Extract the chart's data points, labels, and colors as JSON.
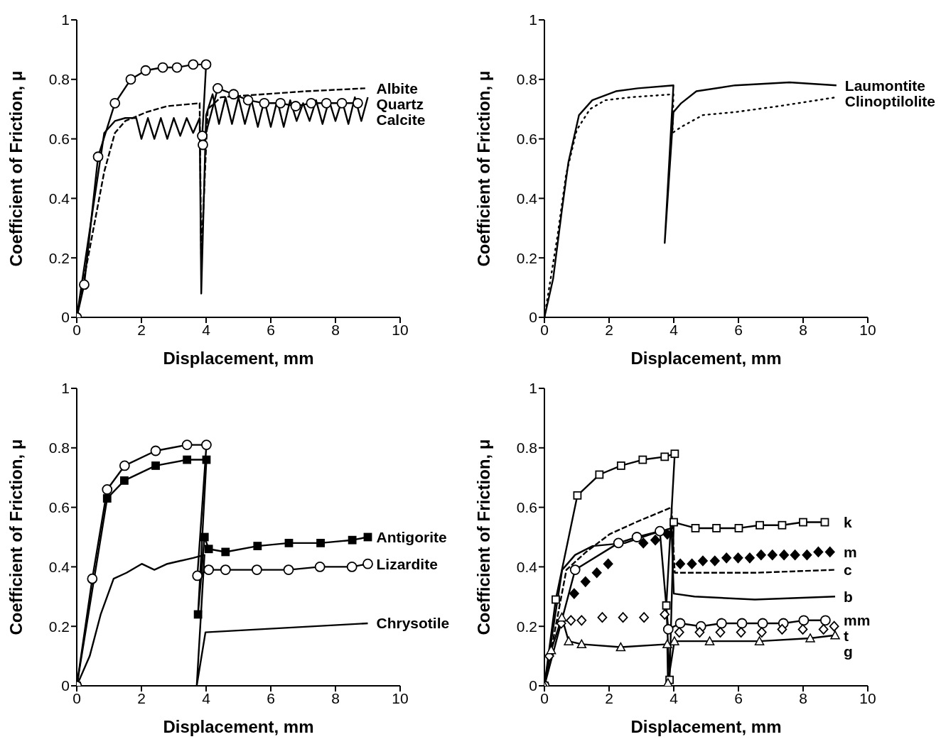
{
  "chart_data": [
    {
      "type": "line",
      "xlabel": "Displacement, mm",
      "ylabel": "Coefficient of Friction, μ",
      "xlim": [
        0,
        10
      ],
      "ylim": [
        0,
        1
      ],
      "xticks": [
        0,
        2,
        4,
        6,
        8,
        10
      ],
      "yticks": [
        0,
        0.2,
        0.4,
        0.6,
        0.8,
        1
      ],
      "series": [
        {
          "name": "Calcite",
          "color": "#000000",
          "marker": "circle",
          "line_style": "solid",
          "x": [
            0,
            0.23,
            0.66,
            1.18,
            1.67,
            2.13,
            2.66,
            3.1,
            3.6,
            4.0,
            3.88,
            3.9,
            4.36,
            4.85,
            5.3,
            5.8,
            6.3,
            6.77,
            7.25,
            7.72,
            8.2,
            8.69
          ],
          "values": [
            0,
            0.11,
            0.54,
            0.72,
            0.8,
            0.83,
            0.84,
            0.84,
            0.85,
            0.85,
            0.61,
            0.58,
            0.77,
            0.75,
            0.73,
            0.72,
            0.72,
            0.71,
            0.72,
            0.72,
            0.72,
            0.72
          ]
        },
        {
          "name": "Albite",
          "color": "#000000",
          "marker": "none",
          "line_style": "dashed",
          "x": [
            0,
            0.52,
            0.85,
            1.18,
            1.5,
            2.16,
            2.8,
            3.8,
            3.85,
            4.05,
            4.46,
            5.77,
            7.08,
            8.92
          ],
          "values": [
            0,
            0.3,
            0.49,
            0.62,
            0.66,
            0.69,
            0.71,
            0.72,
            0.2,
            0.7,
            0.74,
            0.75,
            0.76,
            0.77
          ]
        },
        {
          "name": "Quartz",
          "color": "#000000",
          "marker": "none",
          "line_style": "solid",
          "x": [
            0,
            0.85,
            1.18,
            1.5,
            1.84,
            2.0,
            2.2,
            2.4,
            2.6,
            2.8,
            3.0,
            3.2,
            3.4,
            3.6,
            3.8,
            3.85,
            4.0,
            4.2,
            4.4,
            4.6,
            4.8,
            5.0,
            5.2,
            5.4,
            5.6,
            5.8,
            6.0,
            6.2,
            6.4,
            6.6,
            6.8,
            7.0,
            7.2,
            7.4,
            7.6,
            7.8,
            8.0,
            8.2,
            8.4,
            8.6,
            8.8,
            9.0
          ],
          "values": [
            0,
            0.62,
            0.66,
            0.67,
            0.67,
            0.6,
            0.67,
            0.6,
            0.67,
            0.6,
            0.67,
            0.61,
            0.67,
            0.62,
            0.67,
            0.08,
            0.68,
            0.75,
            0.65,
            0.74,
            0.65,
            0.74,
            0.65,
            0.73,
            0.64,
            0.73,
            0.64,
            0.73,
            0.64,
            0.73,
            0.66,
            0.72,
            0.66,
            0.73,
            0.65,
            0.73,
            0.66,
            0.73,
            0.65,
            0.74,
            0.66,
            0.74
          ]
        }
      ]
    },
    {
      "type": "line",
      "xlabel": "Displacement, mm",
      "ylabel": "Coefficient of Friction, μ",
      "xlim": [
        0,
        10
      ],
      "ylim": [
        0,
        1
      ],
      "xticks": [
        0,
        2,
        4,
        6,
        8,
        10
      ],
      "yticks": [
        0,
        0.2,
        0.4,
        0.6,
        0.8,
        1
      ],
      "series": [
        {
          "name": "Laumontite",
          "color": "#000000",
          "marker": "none",
          "line_style": "solid",
          "x": [
            0,
            0.27,
            0.54,
            0.74,
            1.07,
            1.48,
            2.21,
            2.89,
            3.99,
            3.72,
            3.99,
            4.23,
            4.7,
            5.9,
            7.58,
            9.03
          ],
          "values": [
            0,
            0.13,
            0.36,
            0.52,
            0.68,
            0.73,
            0.76,
            0.77,
            0.78,
            0.25,
            0.69,
            0.72,
            0.76,
            0.78,
            0.79,
            0.78
          ]
        },
        {
          "name": "Clinoptilolite",
          "color": "#000000",
          "marker": "none",
          "line_style": "dotted",
          "x": [
            0,
            0.4,
            0.67,
            1.0,
            1.41,
            1.88,
            2.68,
            3.99,
            3.96,
            4.23,
            4.9,
            5.9,
            7.25,
            9.03
          ],
          "values": [
            0,
            0.27,
            0.48,
            0.63,
            0.7,
            0.73,
            0.74,
            0.75,
            0.62,
            0.64,
            0.68,
            0.69,
            0.71,
            0.74
          ]
        }
      ]
    },
    {
      "type": "line",
      "xlabel": "Displacement, mm",
      "ylabel": "Coefficient of Friction, μ",
      "xlim": [
        0,
        10
      ],
      "ylim": [
        0,
        1
      ],
      "xticks": [
        0,
        2,
        4,
        6,
        8,
        10
      ],
      "yticks": [
        0,
        0.2,
        0.4,
        0.6,
        0.8,
        1
      ],
      "series": [
        {
          "name": "Antigorite",
          "color": "#000000",
          "marker": "square",
          "line_style": "solid",
          "x": [
            0,
            0.94,
            1.47,
            2.44,
            3.41,
            4.01,
            3.75,
            3.95,
            4.08,
            4.6,
            5.59,
            6.56,
            7.54,
            8.52,
            9.0
          ],
          "values": [
            0,
            0.63,
            0.69,
            0.74,
            0.76,
            0.76,
            0.24,
            0.5,
            0.46,
            0.45,
            0.47,
            0.48,
            0.48,
            0.49,
            0.5
          ]
        },
        {
          "name": "Lizardite",
          "color": "#000000",
          "marker": "circle",
          "line_style": "solid",
          "x": [
            0,
            0.48,
            0.94,
            1.48,
            2.44,
            3.41,
            4.01,
            3.73,
            4.08,
            4.6,
            5.57,
            6.55,
            7.52,
            8.51,
            9.0
          ],
          "values": [
            0,
            0.36,
            0.66,
            0.74,
            0.79,
            0.81,
            0.81,
            0.37,
            0.39,
            0.39,
            0.39,
            0.39,
            0.4,
            0.4,
            0.41
          ]
        },
        {
          "name": "Chrysotile",
          "color": "#000000",
          "marker": "none",
          "line_style": "solid",
          "x": [
            0,
            0.4,
            0.74,
            1.14,
            1.54,
            2.01,
            2.4,
            2.8,
            3.2,
            3.6,
            3.95,
            3.71,
            3.98,
            9.0
          ],
          "values": [
            0,
            0.1,
            0.24,
            0.36,
            0.38,
            0.41,
            0.39,
            0.41,
            0.42,
            0.43,
            0.44,
            0,
            0.18,
            0.21
          ]
        }
      ]
    },
    {
      "type": "line",
      "xlabel": "Displacement, mm",
      "ylabel": "Coefficient of Friction, μ",
      "xlim": [
        0,
        10
      ],
      "ylim": [
        0,
        1
      ],
      "xticks": [
        0,
        2,
        4,
        6,
        8,
        10
      ],
      "yticks": [
        0,
        0.2,
        0.4,
        0.6,
        0.8,
        1
      ],
      "series": [
        {
          "name": "k",
          "color": "#000000",
          "marker": "square",
          "line_style": "solid",
          "x": [
            0,
            0.35,
            1.02,
            1.7,
            2.37,
            3.04,
            3.72,
            4.03,
            3.77,
            3.87,
            4.0,
            4.67,
            5.32,
            6.01,
            6.66,
            7.35,
            8.0,
            8.67
          ],
          "values": [
            0,
            0.29,
            0.64,
            0.71,
            0.74,
            0.76,
            0.77,
            0.78,
            0.27,
            0.02,
            0.55,
            0.53,
            0.53,
            0.53,
            0.54,
            0.54,
            0.55,
            0.55
          ]
        },
        {
          "name": "m",
          "type": "scatter",
          "color": "#000000",
          "marker": "diamond",
          "x": [
            0.92,
            1.27,
            1.62,
            1.97,
            3.06,
            3.43,
            3.8,
            4.2,
            4.56,
            4.9,
            5.27,
            5.63,
            5.99,
            6.35,
            6.7,
            7.05,
            7.41,
            7.75,
            8.12,
            8.47,
            8.83
          ],
          "values": [
            0.31,
            0.35,
            0.38,
            0.41,
            0.48,
            0.49,
            0.51,
            0.41,
            0.41,
            0.42,
            0.42,
            0.43,
            0.43,
            0.43,
            0.44,
            0.44,
            0.44,
            0.44,
            0.44,
            0.45,
            0.45
          ]
        },
        {
          "name": "c",
          "color": "#000000",
          "marker": "none",
          "line_style": "dashed",
          "x": [
            0,
            0.68,
            1.29,
            2.02,
            2.83,
            3.93,
            4.03,
            5.17,
            6.51,
            8.99
          ],
          "values": [
            0,
            0.39,
            0.45,
            0.51,
            0.55,
            0.6,
            0.38,
            0.38,
            0.38,
            0.39
          ]
        },
        {
          "name": "b",
          "color": "#000000",
          "marker": "none",
          "line_style": "solid",
          "x": [
            0,
            0.28,
            0.55,
            0.95,
            1.49,
            2.49,
            3.3,
            3.93,
            4.0,
            4.64,
            6.51,
            8.99
          ],
          "values": [
            0,
            0.2,
            0.39,
            0.44,
            0.47,
            0.48,
            0.51,
            0.53,
            0.31,
            0.3,
            0.29,
            0.3
          ]
        },
        {
          "name": "mm",
          "color": "#000000",
          "marker": "circle",
          "line_style": "solid",
          "x": [
            0,
            0.95,
            2.29,
            2.86,
            3.57,
            3.83,
            4.2,
            4.84,
            5.48,
            6.11,
            6.75,
            7.39,
            8.02,
            8.69
          ],
          "values": [
            0,
            0.39,
            0.48,
            0.5,
            0.52,
            0.19,
            0.21,
            0.2,
            0.21,
            0.21,
            0.21,
            0.21,
            0.22,
            0.22
          ]
        },
        {
          "name": "t",
          "type": "scatter",
          "color": "#000000",
          "marker": "diamond",
          "x": [
            0.15,
            0.52,
            0.82,
            1.15,
            1.79,
            2.43,
            3.08,
            3.72,
            4.17,
            4.8,
            5.44,
            6.08,
            6.72,
            7.35,
            7.99,
            8.63,
            8.96
          ],
          "values": [
            0.1,
            0.21,
            0.22,
            0.22,
            0.23,
            0.23,
            0.23,
            0.24,
            0.18,
            0.18,
            0.18,
            0.18,
            0.18,
            0.19,
            0.19,
            0.19,
            0.2
          ]
        },
        {
          "name": "g",
          "color": "#000000",
          "marker": "triangle",
          "line_style": "solid",
          "x": [
            0,
            0.21,
            0.54,
            0.75,
            1.15,
            2.36,
            3.8,
            3.82,
            4.02,
            5.11,
            6.65,
            8.22,
            8.99
          ],
          "values": [
            0,
            0.12,
            0.23,
            0.15,
            0.14,
            0.13,
            0.14,
            0.01,
            0.15,
            0.15,
            0.15,
            0.16,
            0.17
          ]
        }
      ]
    }
  ]
}
